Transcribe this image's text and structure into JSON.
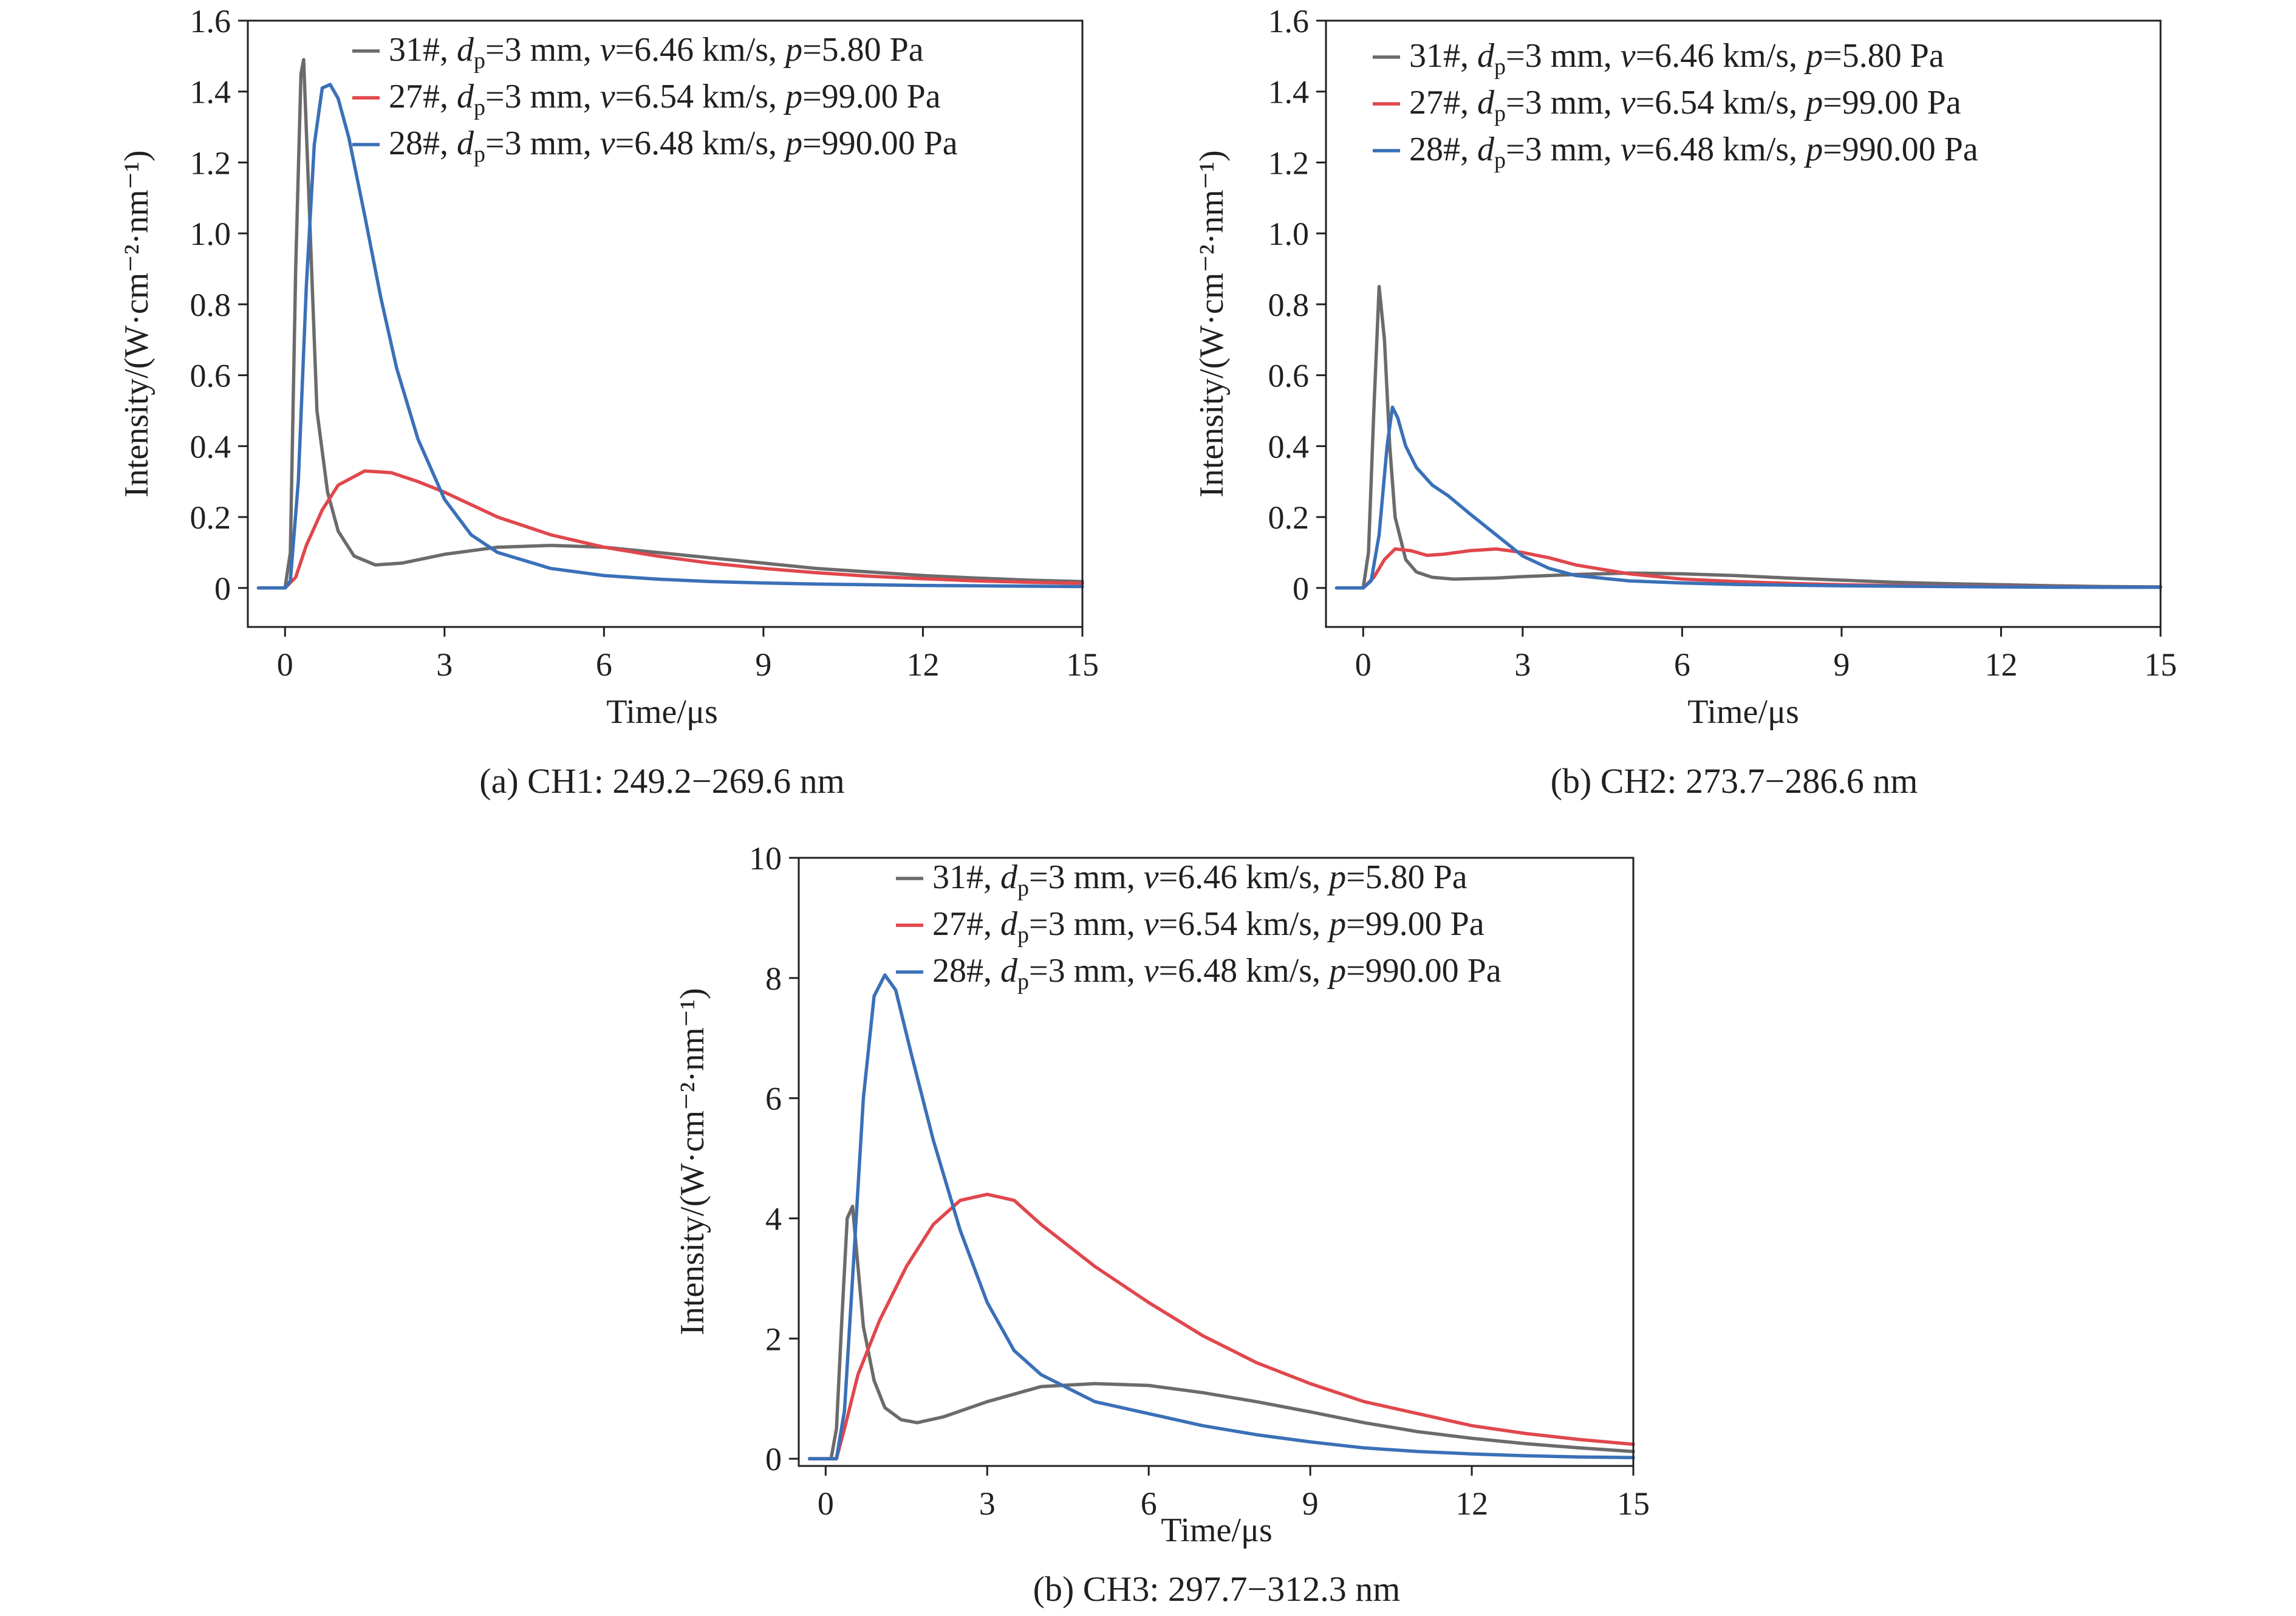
{
  "colors": {
    "31#": "#6b6b6b",
    "27#": "#e0474c",
    "28#": "#3a70b8",
    "axis": "#231f20"
  },
  "chart_data": [
    {
      "type": "line",
      "caption": "(a) CH1: 249.2−269.6 nm",
      "xlabel": "Time/μs",
      "ylabel": "Intensity/(W·cm⁻²·nm⁻¹)",
      "xlim": [
        -0.7,
        15
      ],
      "ylim": [
        -0.11,
        1.6
      ],
      "xticks": [
        0,
        3,
        6,
        9,
        12,
        15
      ],
      "xtick_labels": [
        "0",
        "3",
        "6",
        "9",
        "12",
        "15"
      ],
      "yticks": [
        0,
        0.2,
        0.4,
        0.6,
        0.8,
        1.0,
        1.2,
        1.4,
        1.6
      ],
      "ytick_labels": [
        "0",
        "0.2",
        "0.4",
        "0.6",
        "0.8",
        "1.0",
        "1.2",
        "1.4",
        "1.6"
      ],
      "legend_position": "top-right",
      "series": [
        {
          "name": "31#, dp=3 mm, v=6.46 km/s, p=5.80 Pa",
          "label_parts": [
            "31#, ",
            "d",
            "p",
            "=3 mm, ",
            "v",
            "=6.46 km/s, ",
            "p",
            "=5.80 Pa"
          ],
          "color_key": "31#",
          "x": [
            -0.5,
            0,
            0.1,
            0.2,
            0.3,
            0.35,
            0.45,
            0.6,
            0.8,
            1.0,
            1.3,
            1.7,
            2.2,
            3,
            4,
            5,
            6,
            7,
            8,
            9,
            10,
            11,
            12,
            13,
            14,
            15
          ],
          "y": [
            0,
            0,
            0.1,
            0.9,
            1.45,
            1.49,
            1.1,
            0.5,
            0.27,
            0.16,
            0.09,
            0.065,
            0.07,
            0.095,
            0.115,
            0.12,
            0.115,
            0.1,
            0.085,
            0.07,
            0.055,
            0.045,
            0.035,
            0.028,
            0.022,
            0.018
          ]
        },
        {
          "name": "27#, dp=3 mm, v=6.54 km/s, p=99.00 Pa",
          "label_parts": [
            "27#, ",
            "d",
            "p",
            "=3 mm, ",
            "v",
            "=6.54 km/s, ",
            "p",
            "=99.00 Pa"
          ],
          "color_key": "27#",
          "x": [
            -0.5,
            0,
            0.2,
            0.4,
            0.7,
            1.0,
            1.5,
            2.0,
            2.5,
            3,
            4,
            5,
            6,
            7,
            8,
            9,
            10,
            11,
            12,
            13,
            14,
            15
          ],
          "y": [
            0,
            0,
            0.03,
            0.12,
            0.22,
            0.29,
            0.33,
            0.325,
            0.3,
            0.27,
            0.2,
            0.15,
            0.115,
            0.09,
            0.07,
            0.055,
            0.043,
            0.033,
            0.026,
            0.02,
            0.016,
            0.013
          ]
        },
        {
          "name": "28#, dp=3 mm, v=6.48 km/s, p=990.00 Pa",
          "label_parts": [
            "28#, ",
            "d",
            "p",
            "=3 mm, ",
            "v",
            "=6.48 km/s, ",
            "p",
            "=990.00 Pa"
          ],
          "color_key": "28#",
          "x": [
            -0.5,
            0,
            0.1,
            0.25,
            0.4,
            0.55,
            0.7,
            0.85,
            1.0,
            1.2,
            1.5,
            1.8,
            2.1,
            2.5,
            3,
            3.5,
            4,
            5,
            6,
            7,
            8,
            9,
            10,
            11,
            12,
            13,
            14,
            15
          ],
          "y": [
            0,
            0,
            0.02,
            0.3,
            0.85,
            1.25,
            1.41,
            1.42,
            1.38,
            1.27,
            1.05,
            0.82,
            0.62,
            0.42,
            0.25,
            0.15,
            0.1,
            0.055,
            0.035,
            0.025,
            0.018,
            0.014,
            0.011,
            0.009,
            0.007,
            0.006,
            0.005,
            0.004
          ]
        }
      ]
    },
    {
      "type": "line",
      "caption": "(b) CH2: 273.7−286.6 nm",
      "xlabel": "Time/μs",
      "ylabel": "Intensity/(W·cm⁻²·nm⁻¹)",
      "xlim": [
        -0.7,
        15
      ],
      "ylim": [
        -0.11,
        1.6
      ],
      "xticks": [
        0,
        3,
        6,
        9,
        12,
        15
      ],
      "xtick_labels": [
        "0",
        "3",
        "6",
        "9",
        "12",
        "15"
      ],
      "yticks": [
        0,
        0.2,
        0.4,
        0.6,
        0.8,
        1.0,
        1.2,
        1.4,
        1.6
      ],
      "ytick_labels": [
        "0",
        "0.2",
        "0.4",
        "0.6",
        "0.8",
        "1.0",
        "1.2",
        "1.4",
        "1.6"
      ],
      "legend_position": "top",
      "series": [
        {
          "name": "31#, dp=3 mm, v=6.46 km/s, p=5.80 Pa",
          "label_parts": [
            "31#, ",
            "d",
            "p",
            "=3 mm, ",
            "v",
            "=6.46 km/s, ",
            "p",
            "=5.80 Pa"
          ],
          "color_key": "31#",
          "x": [
            -0.5,
            0,
            0.1,
            0.2,
            0.3,
            0.4,
            0.5,
            0.6,
            0.8,
            1.0,
            1.3,
            1.7,
            2.5,
            3,
            4,
            5,
            6,
            7,
            8,
            9,
            10,
            11,
            12,
            13,
            14,
            15
          ],
          "y": [
            0,
            0,
            0.1,
            0.5,
            0.85,
            0.7,
            0.4,
            0.2,
            0.08,
            0.045,
            0.03,
            0.025,
            0.028,
            0.032,
            0.038,
            0.042,
            0.04,
            0.035,
            0.028,
            0.022,
            0.016,
            0.012,
            0.009,
            0.006,
            0.004,
            0.003
          ]
        },
        {
          "name": "27#, dp=3 mm, v=6.54 km/s, p=99.00 Pa",
          "label_parts": [
            "27#, ",
            "d",
            "p",
            "=3 mm, ",
            "v",
            "=6.54 km/s, ",
            "p",
            "=99.00 Pa"
          ],
          "color_key": "27#",
          "x": [
            -0.5,
            0,
            0.2,
            0.4,
            0.6,
            0.9,
            1.2,
            1.5,
            2.0,
            2.5,
            3.0,
            3.5,
            4.0,
            5,
            6,
            7,
            8,
            9,
            10,
            11,
            12,
            13,
            14,
            15
          ],
          "y": [
            0,
            0,
            0.03,
            0.08,
            0.11,
            0.105,
            0.092,
            0.095,
            0.105,
            0.11,
            0.1,
            0.085,
            0.065,
            0.04,
            0.025,
            0.018,
            0.013,
            0.009,
            0.007,
            0.005,
            0.004,
            0.003,
            0.002,
            0.002
          ]
        },
        {
          "name": "28#, dp=3 mm, v=6.48 km/s, p=990.00 Pa",
          "label_parts": [
            "28#, ",
            "d",
            "p",
            "=3 mm, ",
            "v",
            "=6.48 km/s, ",
            "p",
            "=990.00 Pa"
          ],
          "color_key": "28#",
          "x": [
            -0.5,
            0,
            0.15,
            0.3,
            0.45,
            0.55,
            0.65,
            0.8,
            1.0,
            1.3,
            1.6,
            2.0,
            2.5,
            3.0,
            3.5,
            4,
            5,
            6,
            7,
            8,
            9,
            10,
            11,
            12,
            13,
            14,
            15
          ],
          "y": [
            0,
            0,
            0.02,
            0.15,
            0.4,
            0.51,
            0.48,
            0.4,
            0.34,
            0.29,
            0.26,
            0.21,
            0.15,
            0.09,
            0.055,
            0.035,
            0.02,
            0.014,
            0.01,
            0.008,
            0.006,
            0.005,
            0.004,
            0.003,
            0.002,
            0.002,
            0.002
          ]
        }
      ]
    },
    {
      "type": "line",
      "caption": "(b) CH3: 297.7−312.3 nm",
      "xlabel": "Time/μs",
      "ylabel": "Intensity/(W·cm⁻²·nm⁻¹)",
      "xlim": [
        -0.5,
        15
      ],
      "ylim": [
        -0.12,
        10
      ],
      "xticks": [
        0,
        3,
        6,
        9,
        12,
        15
      ],
      "xtick_labels": [
        "0",
        "3",
        "6",
        "9",
        "12",
        "15"
      ],
      "yticks": [
        0,
        2,
        4,
        6,
        8,
        10
      ],
      "ytick_labels": [
        "0",
        "2",
        "4",
        "6",
        "8",
        "10"
      ],
      "legend_position": "top",
      "series": [
        {
          "name": "31#, dp=3 mm, v=6.46 km/s, p=5.80 Pa",
          "label_parts": [
            "31#, ",
            "d",
            "p",
            "=3 mm, ",
            "v",
            "=6.46 km/s, ",
            "p",
            "=5.80 Pa"
          ],
          "color_key": "31#",
          "x": [
            -0.3,
            0.1,
            0.2,
            0.3,
            0.4,
            0.5,
            0.6,
            0.7,
            0.9,
            1.1,
            1.4,
            1.7,
            2.2,
            3,
            4,
            5,
            6,
            7,
            8,
            9,
            10,
            11,
            12,
            13,
            14,
            15
          ],
          "y": [
            0,
            0,
            0.5,
            2.3,
            4.0,
            4.2,
            3.2,
            2.2,
            1.3,
            0.85,
            0.65,
            0.6,
            0.7,
            0.95,
            1.2,
            1.25,
            1.22,
            1.1,
            0.95,
            0.78,
            0.6,
            0.45,
            0.34,
            0.25,
            0.18,
            0.12
          ]
        },
        {
          "name": "27#, dp=3 mm, v=6.54 km/s, p=99.00 Pa",
          "label_parts": [
            "27#, ",
            "d",
            "p",
            "=3 mm, ",
            "v",
            "=6.54 km/s, ",
            "p",
            "=99.00 Pa"
          ],
          "color_key": "27#",
          "x": [
            -0.3,
            0.2,
            0.35,
            0.6,
            1.0,
            1.5,
            2.0,
            2.5,
            3.0,
            3.5,
            4,
            5,
            6,
            7,
            8,
            9,
            10,
            11,
            12,
            13,
            14,
            15
          ],
          "y": [
            0,
            0,
            0.5,
            1.4,
            2.3,
            3.2,
            3.9,
            4.3,
            4.4,
            4.3,
            3.9,
            3.2,
            2.6,
            2.05,
            1.6,
            1.25,
            0.95,
            0.75,
            0.55,
            0.42,
            0.32,
            0.24
          ]
        },
        {
          "name": "28#, dp=3 mm, v=6.48 km/s, p=990.00 Pa",
          "label_parts": [
            "28#, ",
            "d",
            "p",
            "=3 mm, ",
            "v",
            "=6.48 km/s, ",
            "p",
            "=990.00 Pa"
          ],
          "color_key": "28#",
          "x": [
            -0.3,
            0.2,
            0.35,
            0.5,
            0.7,
            0.9,
            1.1,
            1.3,
            1.6,
            2.0,
            2.5,
            3.0,
            3.5,
            4,
            5,
            6,
            7,
            8,
            9,
            10,
            11,
            12,
            13,
            14,
            15
          ],
          "y": [
            0,
            0,
            0.8,
            3.0,
            6.0,
            7.7,
            8.05,
            7.8,
            6.7,
            5.3,
            3.8,
            2.6,
            1.8,
            1.4,
            0.95,
            0.75,
            0.55,
            0.4,
            0.28,
            0.18,
            0.12,
            0.08,
            0.05,
            0.03,
            0.02
          ]
        }
      ]
    }
  ]
}
